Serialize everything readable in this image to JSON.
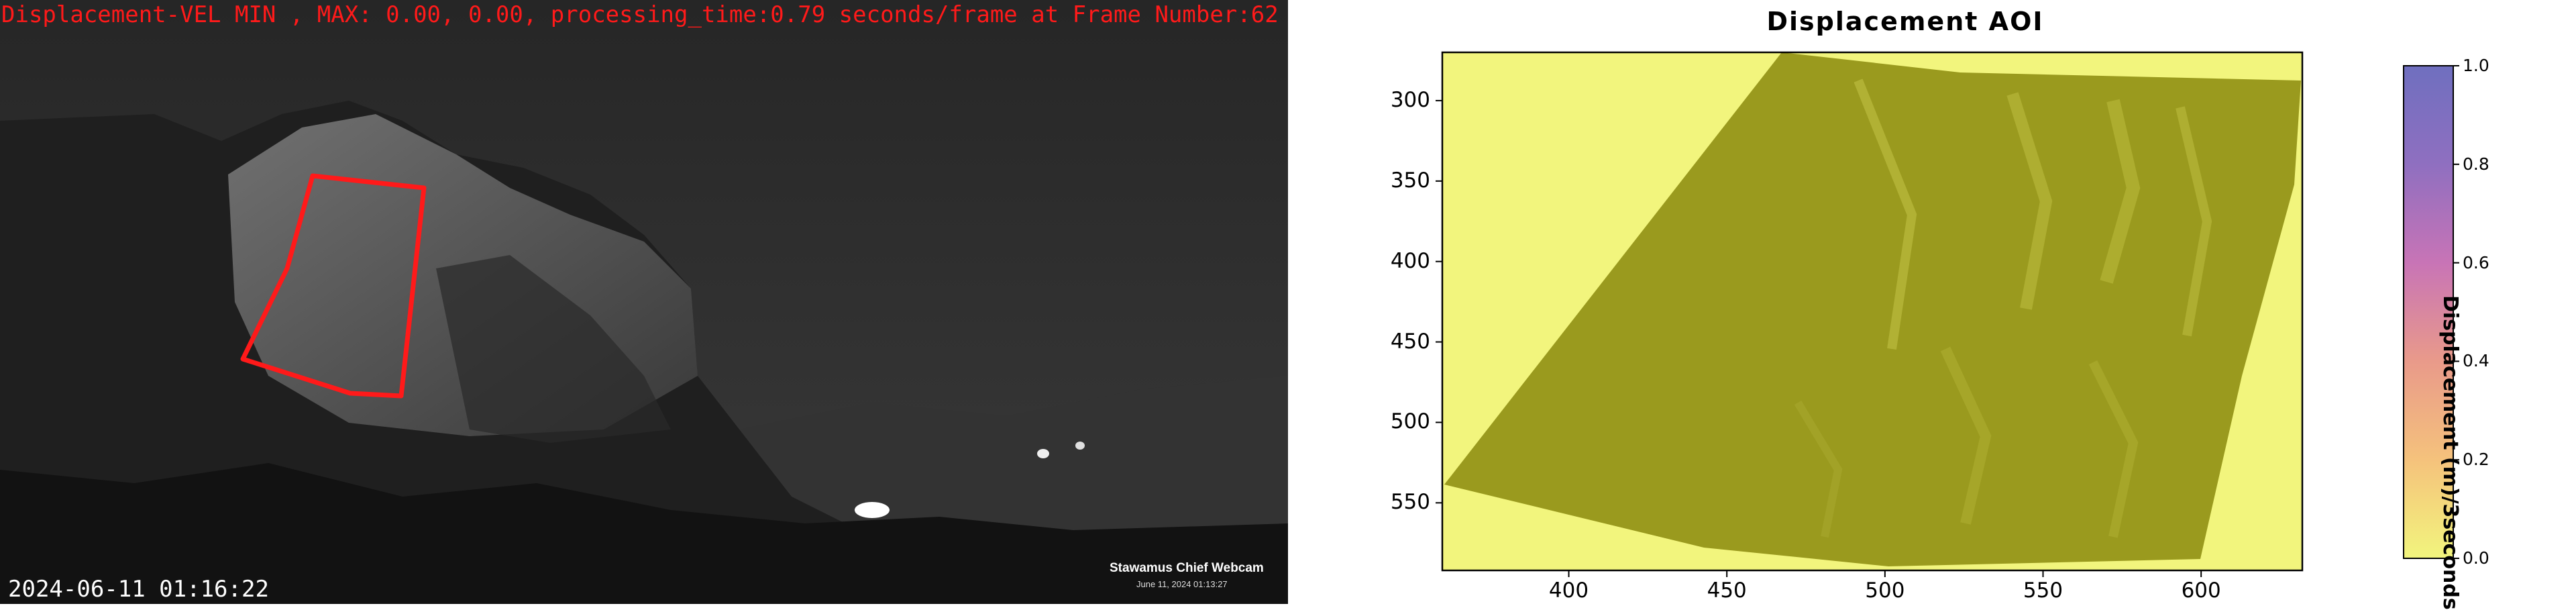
{
  "webcam": {
    "overlay_text": "Displacement-VEL MIN , MAX: 0.00, 0.00, processing_time:0.79 seconds/frame at Frame Number:62",
    "timestamp": "2024-06-11 01:16:22",
    "watermark_title": "Stawamus Chief Webcam",
    "watermark_date": "June 11, 2024 01:13:27",
    "aoi_color": "#ff1a1a"
  },
  "chart_data": {
    "type": "heatmap",
    "title": "Displacement AOI",
    "xlabel": "",
    "ylabel": "",
    "colorbar_label": "Displacement (m)/3seconds",
    "xlim": [
      360,
      632
    ],
    "ylim": [
      592,
      270
    ],
    "xticks": [
      400,
      450,
      500,
      550,
      600
    ],
    "yticks": [
      300,
      350,
      400,
      450,
      500,
      550
    ],
    "colorbar_range": [
      0.0,
      1.0
    ],
    "colorbar_ticks": [
      "0.0",
      "0.2",
      "0.4",
      "0.6",
      "0.8",
      "1.0"
    ],
    "colormap_colors": [
      "#f2f57d",
      "#f5c27c",
      "#e99a8a",
      "#c874b6",
      "#8f6fc0",
      "#6f6fbf"
    ],
    "background_color": "#f2f57d",
    "aoi_fill_color": "#9a9a1e",
    "displacement_min": 0.0,
    "displacement_max": 0.0
  }
}
